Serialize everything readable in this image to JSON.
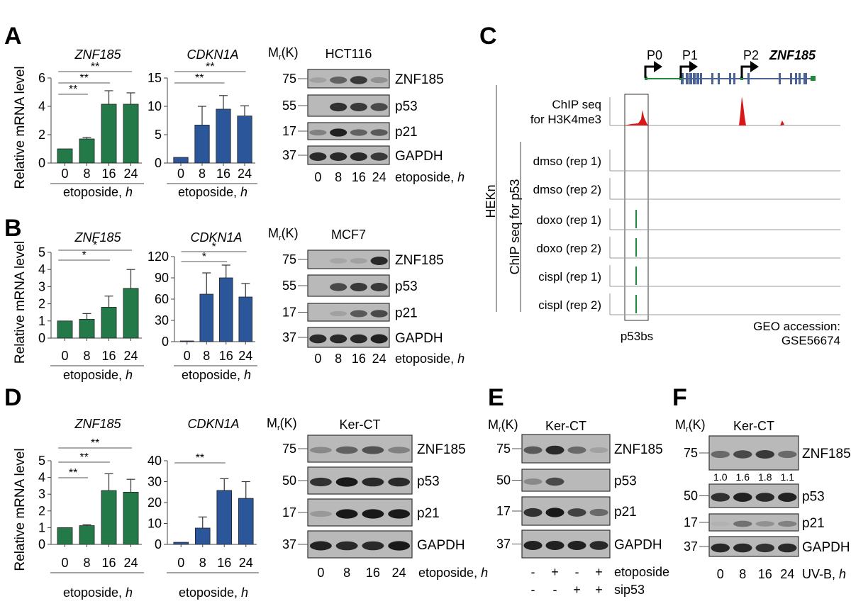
{
  "panels": {
    "A": {
      "letter": "A",
      "blot": {
        "sizes_label": "Mr(K)",
        "cell_line": "HCT116",
        "markers": [
          "75",
          "55",
          "17",
          "37"
        ],
        "proteins": [
          "ZNF185",
          "p53",
          "p21",
          "GAPDH"
        ],
        "lanes": [
          "0",
          "8",
          "16",
          "24"
        ],
        "condition": "etoposide,",
        "condition_unit": "h"
      }
    },
    "B": {
      "letter": "B",
      "blot": {
        "sizes_label": "Mr(K)",
        "cell_line": "MCF7",
        "markers": [
          "75",
          "55",
          "17",
          "37"
        ],
        "proteins": [
          "ZNF185",
          "p53",
          "p21",
          "GAPDH"
        ],
        "lanes": [
          "0",
          "8",
          "16",
          "24"
        ],
        "condition": "etoposide,",
        "condition_unit": "h"
      }
    },
    "C": {
      "letter": "C",
      "gene": "ZNF185",
      "promoters": [
        "P0",
        "P1",
        "P2"
      ],
      "h3k4me3_label_1": "ChIP seq",
      "h3k4me3_label_2": "for H3K4me3",
      "cell": "HEKn",
      "group_label": "ChIP seq for p53",
      "tracks": [
        {
          "label": "dmso (rep 1)",
          "peak": false
        },
        {
          "label": "dmso (rep 2)",
          "peak": false
        },
        {
          "label": "doxo (rep 1)",
          "peak": true
        },
        {
          "label": "doxo (rep 2)",
          "peak": true
        },
        {
          "label": "cispl (rep 1)",
          "peak": true
        },
        {
          "label": "cispl (rep 2)",
          "peak": true
        }
      ],
      "bs_label": "p53bs",
      "geo_1": "GEO accession:",
      "geo_2": "GSE56674"
    },
    "D": {
      "letter": "D",
      "blot": {
        "sizes_label": "Mr(K)",
        "cell_line": "Ker-CT",
        "markers": [
          "75",
          "50",
          "17",
          "37"
        ],
        "proteins": [
          "ZNF185",
          "p53",
          "p21",
          "GAPDH"
        ],
        "lanes": [
          "0",
          "8",
          "16",
          "24"
        ],
        "condition": "etoposide,",
        "condition_unit": "h"
      }
    },
    "E": {
      "letter": "E",
      "blot": {
        "sizes_label": "Mr(K)",
        "cell_line": "Ker-CT",
        "markers": [
          "75",
          "50",
          "17",
          "37"
        ],
        "proteins": [
          "ZNF185",
          "p53",
          "p21",
          "GAPDH"
        ],
        "row1": [
          "-",
          "+",
          "-",
          "+"
        ],
        "row1_label": "etoposide",
        "row2": [
          "-",
          "-",
          "+",
          "+"
        ],
        "row2_label": "sip53"
      }
    },
    "F": {
      "letter": "F",
      "blot": {
        "sizes_label": "Mr(K)",
        "cell_line": "Ker-CT",
        "markers": [
          "75",
          "50",
          "17",
          "37"
        ],
        "proteins": [
          "ZNF185",
          "p53",
          "p21",
          "GAPDH"
        ],
        "quant": [
          "1.0",
          "1.6",
          "1.8",
          "1.1"
        ],
        "lanes": [
          "0",
          "8",
          "16",
          "24"
        ],
        "condition": "UV-B,",
        "condition_unit": "h"
      }
    }
  },
  "colors": {
    "green": "#237a48",
    "blue": "#2b569a",
    "chip_red": "#d81818",
    "gene_blue": "#4a6296",
    "gene_green": "#1e8a3a"
  },
  "chart_data": [
    {
      "id": "A-ZNF185",
      "type": "bar",
      "title": "ZNF185",
      "ylabel": "Relative mRNA level",
      "xlabel": "etoposide, h",
      "categories": [
        "0",
        "8",
        "16",
        "24"
      ],
      "values": [
        1.0,
        1.7,
        4.15,
        4.15
      ],
      "errors": [
        0,
        0.1,
        0.95,
        0.8
      ],
      "ylim": [
        0,
        6
      ],
      "yticks": [
        0,
        2,
        4,
        6
      ],
      "color": "#237a48",
      "significance": [
        {
          "from": 0,
          "to": 1,
          "label": "**"
        },
        {
          "from": 0,
          "to": 2,
          "label": "**"
        },
        {
          "from": 0,
          "to": 3,
          "label": "**"
        }
      ]
    },
    {
      "id": "A-CDKN1A",
      "type": "bar",
      "title": "CDKN1A",
      "ylabel": "",
      "xlabel": "etoposide, h",
      "categories": [
        "0",
        "8",
        "16",
        "24"
      ],
      "values": [
        1.0,
        6.7,
        9.5,
        8.3
      ],
      "errors": [
        0,
        3.3,
        2.4,
        1.8
      ],
      "ylim": [
        0,
        15
      ],
      "yticks": [
        0,
        5,
        10,
        15
      ],
      "color": "#2b569a",
      "significance": [
        {
          "from": 0,
          "to": 2,
          "label": "**"
        },
        {
          "from": 0,
          "to": 3,
          "label": "**"
        }
      ]
    },
    {
      "id": "B-ZNF185",
      "type": "bar",
      "title": "ZNF185",
      "ylabel": "Relative mRNA level",
      "xlabel": "etoposide, h",
      "categories": [
        "0",
        "8",
        "16",
        "24"
      ],
      "values": [
        1.0,
        1.1,
        1.8,
        2.9
      ],
      "errors": [
        0,
        0.33,
        0.65,
        1.1
      ],
      "ylim": [
        0,
        5
      ],
      "yticks": [
        0,
        1,
        2,
        3,
        4,
        5
      ],
      "color": "#237a48",
      "significance": [
        {
          "from": 0,
          "to": 2,
          "label": "*"
        },
        {
          "from": 0,
          "to": 3,
          "label": "*"
        }
      ]
    },
    {
      "id": "B-CDKN1A",
      "type": "bar",
      "title": "CDKN1A",
      "ylabel": "",
      "xlabel": "etoposide, h",
      "categories": [
        "0",
        "8",
        "16",
        "24"
      ],
      "values": [
        1.0,
        67,
        90,
        63
      ],
      "errors": [
        0,
        30,
        18,
        19
      ],
      "ylim": [
        0,
        120
      ],
      "yticks": [
        0,
        30,
        60,
        90,
        120
      ],
      "color": "#2b569a",
      "significance": [
        {
          "from": 0,
          "to": 2,
          "label": "*"
        },
        {
          "from": 0,
          "to": 3,
          "label": "*"
        }
      ]
    },
    {
      "id": "D-ZNF185",
      "type": "bar",
      "title": "ZNF185",
      "ylabel": "Relative mRNA level",
      "xlabel": "etoposide, h",
      "categories": [
        "0",
        "8",
        "16",
        "24"
      ],
      "values": [
        1.0,
        1.12,
        3.22,
        3.12
      ],
      "errors": [
        0,
        0.05,
        1.0,
        0.77
      ],
      "ylim": [
        0,
        5
      ],
      "yticks": [
        0,
        1,
        2,
        3,
        4,
        5
      ],
      "color": "#237a48",
      "significance": [
        {
          "from": 0,
          "to": 1,
          "label": "**"
        },
        {
          "from": 0,
          "to": 2,
          "label": "**"
        },
        {
          "from": 0,
          "to": 3,
          "label": "**"
        }
      ]
    },
    {
      "id": "D-CDKN1A",
      "type": "bar",
      "title": "CDKN1A",
      "ylabel": "",
      "xlabel": "etoposide, h",
      "categories": [
        "0",
        "8",
        "16",
        "24"
      ],
      "values": [
        1.0,
        7.8,
        25.8,
        22.0
      ],
      "errors": [
        0,
        5.3,
        5.6,
        8.0
      ],
      "ylim": [
        0,
        40
      ],
      "yticks": [
        0,
        10,
        20,
        30,
        40
      ],
      "color": "#2b569a",
      "significance": [
        {
          "from": 0,
          "to": 2,
          "label": "**"
        }
      ]
    }
  ]
}
